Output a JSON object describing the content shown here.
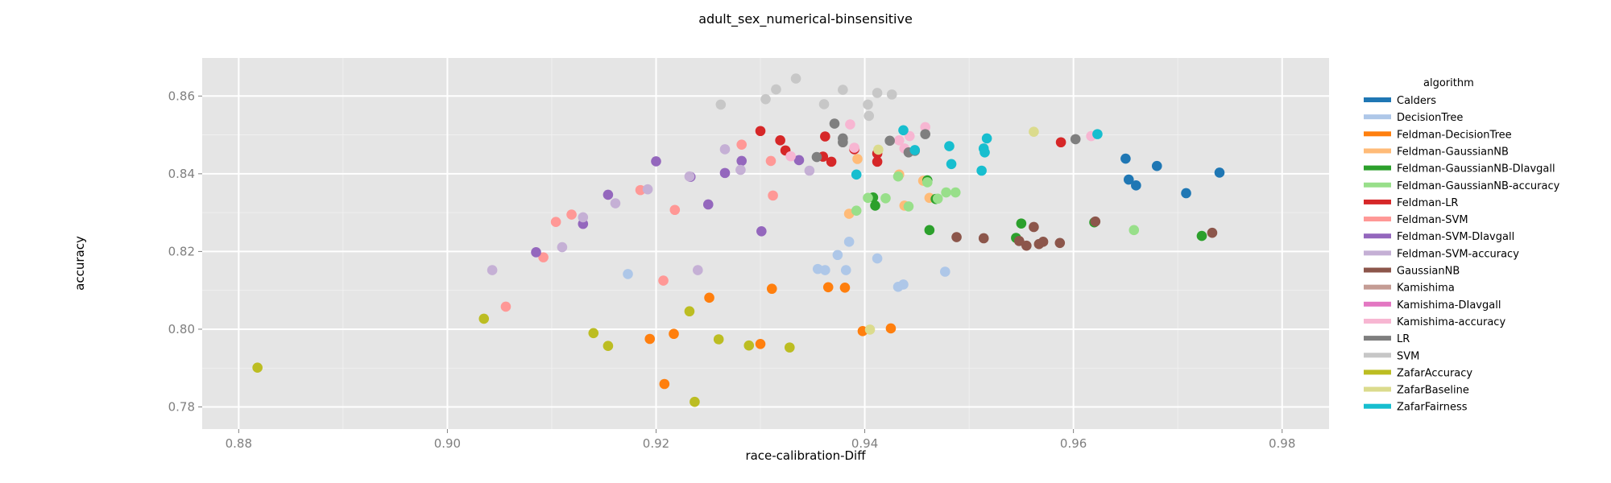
{
  "chart_data": {
    "type": "scatter",
    "title": "adult_sex_numerical-binsensitive",
    "xlabel": "race-calibration-Diff",
    "ylabel": "accuracy",
    "xlim": [
      0.8765,
      0.9845
    ],
    "ylim": [
      0.7743,
      0.8698
    ],
    "xticks": [
      0.88,
      0.9,
      0.92,
      0.94,
      0.96,
      0.98
    ],
    "xtick_labels": [
      "0.88",
      "0.90",
      "0.92",
      "0.94",
      "0.96",
      "0.98"
    ],
    "yticks": [
      0.78,
      0.8,
      0.82,
      0.84,
      0.86
    ],
    "ytick_labels": [
      "0.78",
      "0.80",
      "0.82",
      "0.84",
      "0.86"
    ],
    "grid": true,
    "legend_title": "algorithm",
    "legend_position": "right",
    "series": [
      {
        "name": "Calders",
        "color": "#1f77b4",
        "points": [
          [
            0.965,
            0.8439
          ],
          [
            0.9653,
            0.8385
          ],
          [
            0.966,
            0.837
          ],
          [
            0.968,
            0.842
          ],
          [
            0.9708,
            0.835
          ],
          [
            0.974,
            0.8403
          ]
        ]
      },
      {
        "name": "DecisionTree",
        "color": "#aec7e8",
        "points": [
          [
            0.9173,
            0.8142
          ],
          [
            0.9355,
            0.8155
          ],
          [
            0.9362,
            0.8152
          ],
          [
            0.9374,
            0.8191
          ],
          [
            0.9382,
            0.8152
          ],
          [
            0.9385,
            0.8225
          ],
          [
            0.9412,
            0.8182
          ],
          [
            0.9432,
            0.8109
          ],
          [
            0.9437,
            0.8115
          ],
          [
            0.9477,
            0.8148
          ]
        ]
      },
      {
        "name": "Feldman-DecisionTree",
        "color": "#ff7f0e",
        "points": [
          [
            0.9194,
            0.7975
          ],
          [
            0.9208,
            0.7859
          ],
          [
            0.9217,
            0.7988
          ],
          [
            0.9251,
            0.8081
          ],
          [
            0.93,
            0.7962
          ],
          [
            0.9311,
            0.8104
          ],
          [
            0.9365,
            0.8108
          ],
          [
            0.9381,
            0.8107
          ],
          [
            0.9398,
            0.7995
          ],
          [
            0.9425,
            0.8002
          ]
        ]
      },
      {
        "name": "Feldman-GaussianNB",
        "color": "#ffbb78",
        "points": [
          [
            0.9385,
            0.8297
          ],
          [
            0.9393,
            0.8438
          ],
          [
            0.9433,
            0.8398
          ],
          [
            0.9438,
            0.8318
          ],
          [
            0.9456,
            0.8382
          ],
          [
            0.9462,
            0.8338
          ]
        ]
      },
      {
        "name": "Feldman-GaussianNB-DIavgall",
        "color": "#2ca02c",
        "points": [
          [
            0.9408,
            0.8339
          ],
          [
            0.941,
            0.8318
          ],
          [
            0.946,
            0.8383
          ],
          [
            0.9462,
            0.8255
          ],
          [
            0.9468,
            0.8335
          ],
          [
            0.9545,
            0.8235
          ],
          [
            0.955,
            0.8272
          ],
          [
            0.962,
            0.8275
          ],
          [
            0.9723,
            0.824
          ]
        ]
      },
      {
        "name": "Feldman-GaussianNB-accuracy",
        "color": "#98df8a",
        "points": [
          [
            0.9392,
            0.8305
          ],
          [
            0.9403,
            0.8338
          ],
          [
            0.942,
            0.8337
          ],
          [
            0.9432,
            0.8393
          ],
          [
            0.9442,
            0.8316
          ],
          [
            0.946,
            0.8378
          ],
          [
            0.947,
            0.8336
          ],
          [
            0.9478,
            0.8352
          ],
          [
            0.9487,
            0.8352
          ],
          [
            0.9658,
            0.8255
          ]
        ]
      },
      {
        "name": "Feldman-LR",
        "color": "#d62728",
        "points": [
          [
            0.93,
            0.851
          ],
          [
            0.9319,
            0.8486
          ],
          [
            0.9324,
            0.846
          ],
          [
            0.936,
            0.8444
          ],
          [
            0.9362,
            0.8496
          ],
          [
            0.9368,
            0.8431
          ],
          [
            0.939,
            0.8463
          ],
          [
            0.9412,
            0.8431
          ],
          [
            0.9412,
            0.8452
          ],
          [
            0.9588,
            0.8481
          ]
        ]
      },
      {
        "name": "Feldman-SVM",
        "color": "#ff9896",
        "points": [
          [
            0.9056,
            0.8058
          ],
          [
            0.9092,
            0.8185
          ],
          [
            0.9104,
            0.8276
          ],
          [
            0.9119,
            0.8295
          ],
          [
            0.9185,
            0.8358
          ],
          [
            0.9207,
            0.8125
          ],
          [
            0.9218,
            0.8307
          ],
          [
            0.9282,
            0.8475
          ],
          [
            0.931,
            0.8433
          ],
          [
            0.9312,
            0.8344
          ]
        ]
      },
      {
        "name": "Feldman-SVM-DIavgall",
        "color": "#9467bd",
        "points": [
          [
            0.9085,
            0.8198
          ],
          [
            0.913,
            0.8271
          ],
          [
            0.9154,
            0.8346
          ],
          [
            0.92,
            0.8432
          ],
          [
            0.9233,
            0.8392
          ],
          [
            0.925,
            0.8321
          ],
          [
            0.9266,
            0.8402
          ],
          [
            0.9282,
            0.8433
          ],
          [
            0.9301,
            0.8252
          ],
          [
            0.9337,
            0.8435
          ]
        ]
      },
      {
        "name": "Feldman-SVM-accuracy",
        "color": "#c5b0d5",
        "points": [
          [
            0.9043,
            0.8152
          ],
          [
            0.911,
            0.8211
          ],
          [
            0.913,
            0.8288
          ],
          [
            0.9161,
            0.8324
          ],
          [
            0.9192,
            0.836
          ],
          [
            0.9232,
            0.8393
          ],
          [
            0.924,
            0.8152
          ],
          [
            0.9266,
            0.8463
          ],
          [
            0.9281,
            0.841
          ],
          [
            0.9347,
            0.8408
          ]
        ]
      },
      {
        "name": "GaussianNB",
        "color": "#8c564b",
        "points": [
          [
            0.9488,
            0.8237
          ],
          [
            0.9514,
            0.8234
          ],
          [
            0.9548,
            0.8227
          ],
          [
            0.9555,
            0.8215
          ],
          [
            0.9562,
            0.8263
          ],
          [
            0.9567,
            0.8219
          ],
          [
            0.9571,
            0.8225
          ],
          [
            0.9587,
            0.8222
          ],
          [
            0.9621,
            0.8277
          ],
          [
            0.9733,
            0.8248
          ]
        ]
      },
      {
        "name": "Kamishima",
        "color": "#c49c94",
        "points": []
      },
      {
        "name": "Kamishima-DIavgall",
        "color": "#e377c2",
        "points": []
      },
      {
        "name": "Kamishima-accuracy",
        "color": "#f7b6d2",
        "points": [
          [
            0.9329,
            0.8445
          ],
          [
            0.9386,
            0.8527
          ],
          [
            0.939,
            0.8467
          ],
          [
            0.9433,
            0.8486
          ],
          [
            0.9438,
            0.8465
          ],
          [
            0.9443,
            0.8497
          ],
          [
            0.9458,
            0.852
          ],
          [
            0.9617,
            0.8497
          ]
        ]
      },
      {
        "name": "LR",
        "color": "#7f7f7f",
        "points": [
          [
            0.9354,
            0.8443
          ],
          [
            0.9371,
            0.8529
          ],
          [
            0.9379,
            0.8491
          ],
          [
            0.9379,
            0.8481
          ],
          [
            0.9424,
            0.8485
          ],
          [
            0.9442,
            0.8455
          ],
          [
            0.9448,
            0.8459
          ],
          [
            0.9458,
            0.8502
          ],
          [
            0.9602,
            0.8489
          ]
        ]
      },
      {
        "name": "SVM",
        "color": "#c7c7c7",
        "points": [
          [
            0.9262,
            0.8578
          ],
          [
            0.9305,
            0.8592
          ],
          [
            0.9315,
            0.8617
          ],
          [
            0.9334,
            0.8645
          ],
          [
            0.9361,
            0.8579
          ],
          [
            0.9379,
            0.8616
          ],
          [
            0.9403,
            0.8578
          ],
          [
            0.9404,
            0.8549
          ],
          [
            0.9412,
            0.8608
          ],
          [
            0.9426,
            0.8604
          ]
        ]
      },
      {
        "name": "ZafarAccuracy",
        "color": "#bcbd22",
        "points": [
          [
            0.8818,
            0.7901
          ],
          [
            0.9035,
            0.8027
          ],
          [
            0.914,
            0.799
          ],
          [
            0.9154,
            0.7957
          ],
          [
            0.9232,
            0.8046
          ],
          [
            0.9237,
            0.7813
          ],
          [
            0.926,
            0.7974
          ],
          [
            0.9289,
            0.7958
          ],
          [
            0.9328,
            0.7953
          ]
        ]
      },
      {
        "name": "ZafarBaseline",
        "color": "#dbdb8d",
        "points": [
          [
            0.9405,
            0.7999
          ],
          [
            0.9413,
            0.8462
          ],
          [
            0.9562,
            0.8508
          ]
        ]
      },
      {
        "name": "ZafarFairness",
        "color": "#17becf",
        "points": [
          [
            0.9392,
            0.8398
          ],
          [
            0.9437,
            0.8512
          ],
          [
            0.9448,
            0.8461
          ],
          [
            0.9481,
            0.8471
          ],
          [
            0.9483,
            0.8425
          ],
          [
            0.9512,
            0.8408
          ],
          [
            0.9514,
            0.8465
          ],
          [
            0.9515,
            0.8455
          ],
          [
            0.9517,
            0.8491
          ],
          [
            0.9623,
            0.8502
          ]
        ]
      }
    ]
  }
}
